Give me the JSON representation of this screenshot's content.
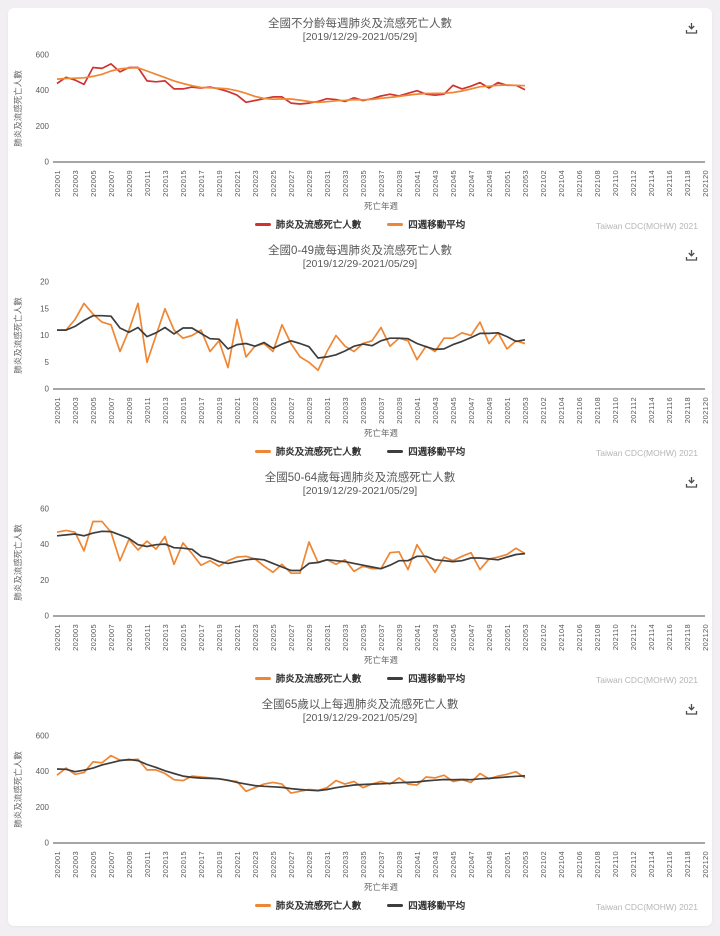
{
  "credit": "Taiwan CDC(MOHW) 2021",
  "chart_data": {
    "type": "line",
    "layout": "4 stacked weekly line charts, legend bottom-center, no grid",
    "xlabel": "死亡年週",
    "ylabel": "肺炎及流感死亡人數",
    "x_tick_step": 2,
    "data_last_week": "202053",
    "x": [
      "202001",
      "202002",
      "202003",
      "202004",
      "202005",
      "202006",
      "202007",
      "202008",
      "202009",
      "202010",
      "202011",
      "202012",
      "202013",
      "202014",
      "202015",
      "202016",
      "202017",
      "202018",
      "202019",
      "202020",
      "202021",
      "202022",
      "202023",
      "202024",
      "202025",
      "202026",
      "202027",
      "202028",
      "202029",
      "202030",
      "202031",
      "202032",
      "202033",
      "202034",
      "202035",
      "202036",
      "202037",
      "202038",
      "202039",
      "202040",
      "202041",
      "202042",
      "202043",
      "202044",
      "202045",
      "202046",
      "202047",
      "202048",
      "202049",
      "202050",
      "202051",
      "202052",
      "202053",
      "202101",
      "202102",
      "202103",
      "202104",
      "202105",
      "202106",
      "202107",
      "202108",
      "202109",
      "202110",
      "202111",
      "202112",
      "202113",
      "202114",
      "202115",
      "202116",
      "202117",
      "202118",
      "202119",
      "202120"
    ],
    "charts": [
      {
        "title": "全國不分齡每週肺炎及流感死亡人數",
        "subtitle": "[2019/12/29-2021/05/29]",
        "ylim": [
          0,
          600
        ],
        "yticks": [
          0,
          200,
          400,
          600
        ],
        "series": [
          {
            "name": "肺炎及流感死亡人數",
            "color": "#cf3430",
            "values": [
              440,
              475,
              460,
              435,
              530,
              525,
              550,
              505,
              530,
              530,
              455,
              450,
              455,
              410,
              410,
              420,
              415,
              420,
              410,
              395,
              375,
              335,
              345,
              355,
              365,
              365,
              330,
              325,
              330,
              340,
              355,
              350,
              340,
              360,
              345,
              355,
              370,
              380,
              370,
              385,
              400,
              380,
              375,
              380,
              430,
              410,
              425,
              445,
              415,
              445,
              430,
              430,
              405
            ]
          },
          {
            "name": "四週移動平均",
            "color": "#ef8633",
            "values": [
              465,
              468,
              470,
              472,
              480,
              492,
              510,
              522,
              527,
              528,
              510,
              492,
              473,
              455,
              440,
              428,
              418,
              416,
              414,
              410,
              400,
              385,
              368,
              356,
              352,
              354,
              353,
              347,
              339,
              334,
              338,
              343,
              346,
              350,
              349,
              351,
              357,
              362,
              368,
              375,
              381,
              384,
              385,
              385,
              390,
              398,
              410,
              422,
              425,
              430,
              432,
              430,
              428
            ]
          }
        ]
      },
      {
        "title": "全國0-49歲每週肺炎及流感死亡人數",
        "subtitle": "[2019/12/29-2021/05/29]",
        "ylim": [
          0,
          20
        ],
        "yticks": [
          0,
          5,
          10,
          15,
          20
        ],
        "series": [
          {
            "name": "肺炎及流感死亡人數",
            "color": "#ef8633",
            "values": [
              11,
              11,
              13,
              16,
              14,
              12.5,
              12,
              7,
              11,
              16,
              5,
              10,
              15,
              11,
              9.5,
              10,
              11,
              7,
              9,
              4,
              13,
              6,
              8,
              8.5,
              7,
              12,
              8.5,
              6,
              5,
              3.5,
              7,
              10,
              8,
              7,
              8.5,
              9,
              11.5,
              8,
              9.5,
              9,
              5.5,
              8,
              7,
              9.5,
              9.5,
              10.5,
              10,
              12.5,
              8.5,
              10.5,
              7.5,
              9,
              8.5
            ]
          },
          {
            "name": "四週移動平均",
            "color": "#3d3d3d",
            "values": [
              11,
              11,
              11.7,
              12.8,
              13.7,
              13.7,
              13.6,
              11.4,
              10.6,
              11.5,
              9.8,
              10.5,
              11.5,
              10.3,
              11.4,
              11.4,
              10.4,
              9.4,
              9.3,
              7.5,
              8.3,
              8.5,
              8,
              8.7,
              7.6,
              8.4,
              9,
              8.5,
              7.9,
              5.8,
              6,
              6.4,
              7.1,
              8,
              8.4,
              8.1,
              9,
              9.5,
              9.5,
              9.4,
              8.5,
              7.9,
              7.4,
              7.5,
              8.3,
              8.9,
              9.6,
              10.4,
              10.4,
              10.5,
              9.8,
              8.9,
              9.2
            ]
          }
        ]
      },
      {
        "title": "全國50-64歲每週肺炎及流感死亡人數",
        "subtitle": "[2019/12/29-2021/05/29]",
        "ylim": [
          0,
          60
        ],
        "yticks": [
          0,
          20,
          40,
          60
        ],
        "series": [
          {
            "name": "肺炎及流感死亡人數",
            "color": "#ef8633",
            "values": [
              47,
              48,
              47,
              36.5,
              53,
              53,
              47,
              31,
              43,
              37,
              42,
              37.5,
              44.5,
              29,
              41,
              35,
              28.5,
              31,
              28,
              31,
              33,
              33.5,
              32,
              28,
              24.5,
              29,
              24,
              24,
              41.5,
              30,
              31.5,
              29,
              31.5,
              25,
              28,
              26.5,
              26.5,
              35.5,
              36,
              26,
              40,
              32,
              24.5,
              33,
              31,
              33.5,
              35.5,
              26,
              32,
              33,
              34.5,
              38,
              35
            ]
          },
          {
            "name": "四週移動平均",
            "color": "#3d3d3d",
            "values": [
              45,
              45.5,
              46,
              45,
              46.5,
              47.5,
              47.3,
              45.5,
              43.5,
              40,
              39,
              40,
              40.3,
              38.3,
              38,
              37.4,
              33.5,
              32.5,
              30.5,
              29.5,
              30.5,
              31.5,
              32,
              31.5,
              29.5,
              27.5,
              25.5,
              25.5,
              29.5,
              30,
              31.5,
              31,
              30.5,
              29.5,
              28.5,
              27.5,
              26.5,
              28.5,
              31,
              31,
              33.5,
              33.5,
              31.5,
              31,
              30.5,
              31,
              32.5,
              32.5,
              32,
              31.5,
              33,
              34.5,
              35
            ]
          }
        ]
      },
      {
        "title": "全國65歲以上每週肺炎及流感死亡人數",
        "subtitle": "[2019/12/29-2021/05/29]",
        "ylim": [
          0,
          600
        ],
        "yticks": [
          0,
          200,
          400,
          600
        ],
        "series": [
          {
            "name": "肺炎及流感死亡人數",
            "color": "#ef8633",
            "values": [
              380,
              420,
              385,
              395,
              455,
              450,
              490,
              465,
              465,
              470,
              410,
              410,
              390,
              355,
              350,
              375,
              370,
              365,
              360,
              350,
              345,
              290,
              310,
              330,
              340,
              330,
              280,
              290,
              300,
              295,
              310,
              350,
              330,
              345,
              310,
              330,
              345,
              330,
              365,
              330,
              325,
              370,
              365,
              380,
              345,
              355,
              340,
              390,
              360,
              375,
              385,
              400,
              365
            ]
          },
          {
            "name": "四週移動平均",
            "color": "#3d3d3d",
            "values": [
              415,
              413,
              400,
              408,
              420,
              438,
              450,
              462,
              468,
              462,
              440,
              424,
              405,
              390,
              375,
              368,
              364,
              362,
              360,
              352,
              340,
              330,
              322,
              318,
              315,
              312,
              305,
              300,
              296,
              294,
              300,
              310,
              318,
              325,
              328,
              330,
              332,
              335,
              338,
              340,
              342,
              348,
              352,
              356,
              355,
              356,
              355,
              360,
              362,
              366,
              370,
              374,
              376
            ]
          }
        ]
      }
    ]
  }
}
